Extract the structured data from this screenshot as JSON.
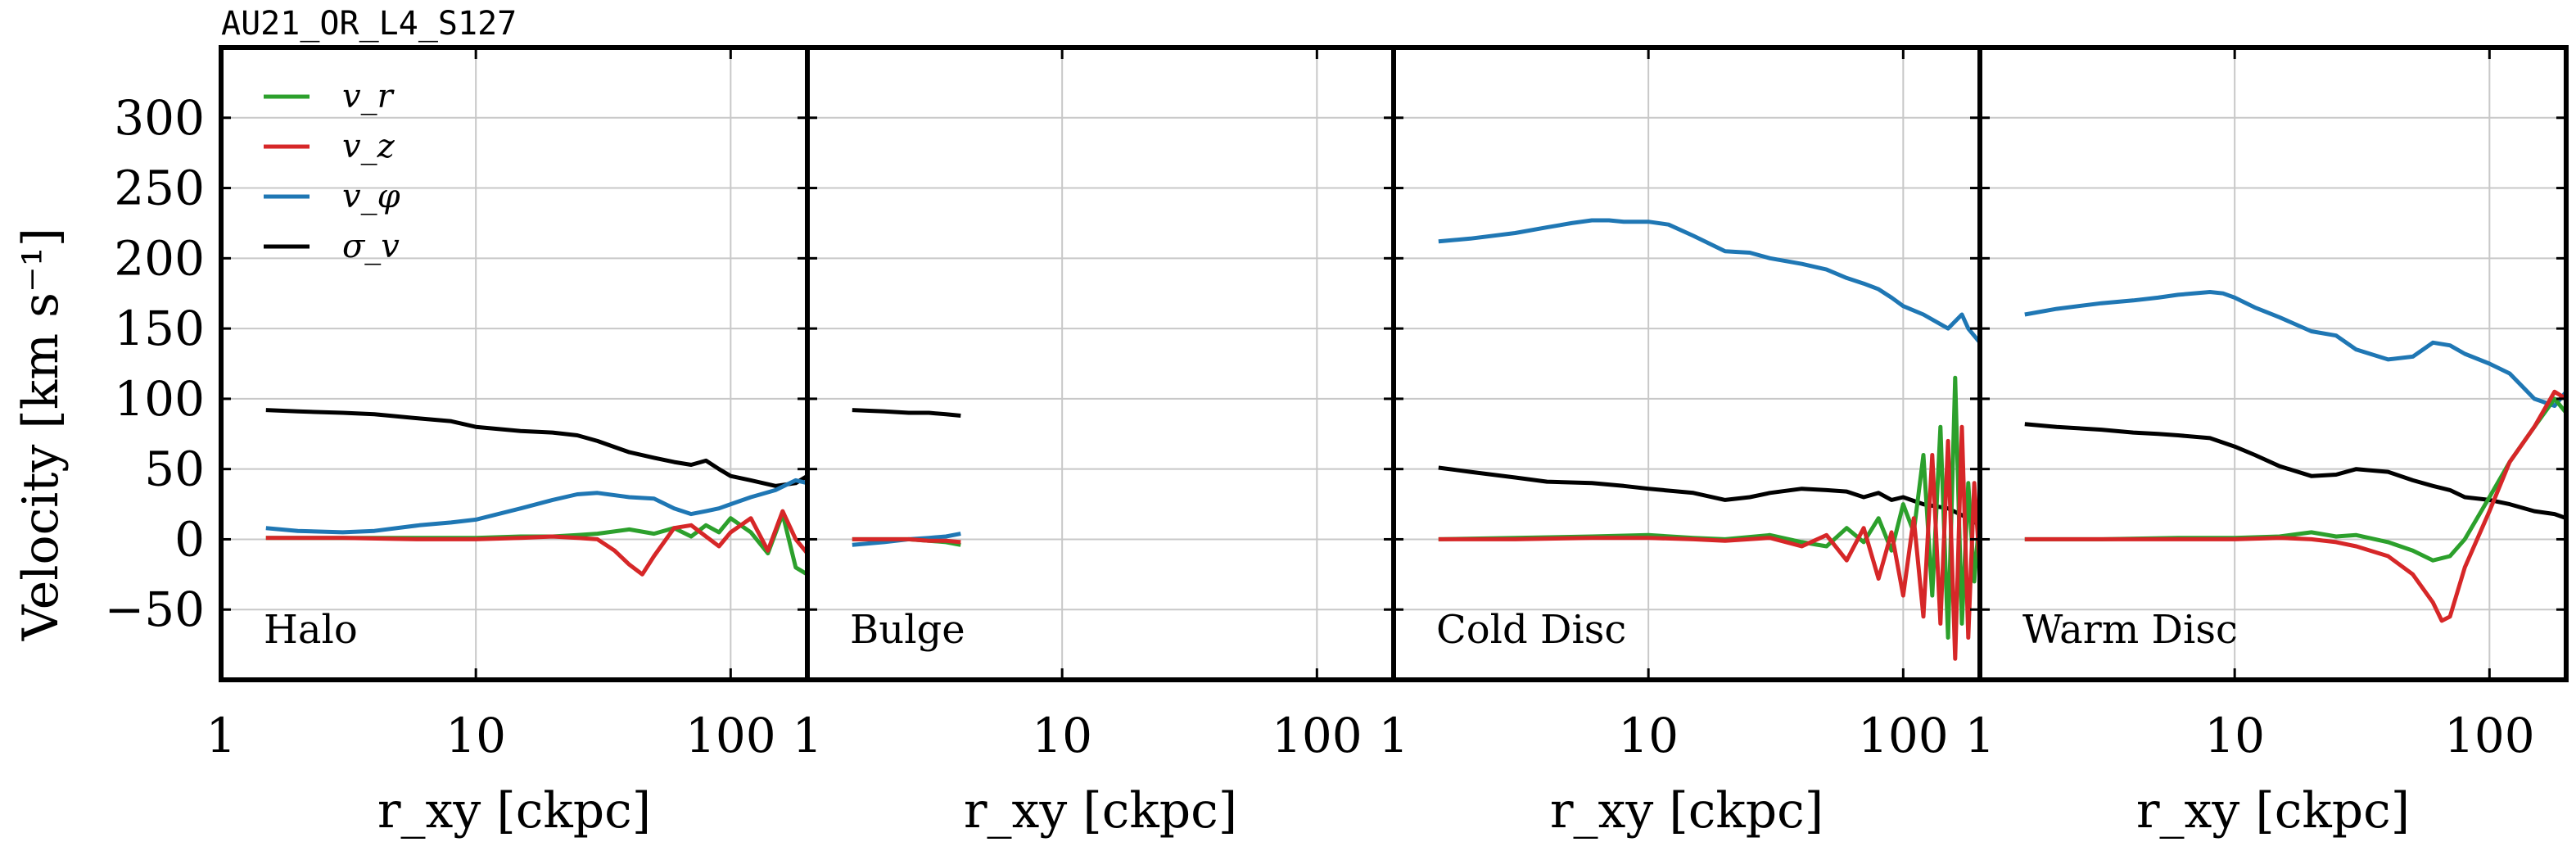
{
  "chart_data": {
    "type": "line",
    "title": "AU21_OR_L4_S127",
    "ylabel": "Velocity [km s⁻¹]",
    "ylim": [
      -100,
      350
    ],
    "yticks": [
      300,
      250,
      200,
      150,
      100,
      50,
      0,
      -50
    ],
    "ytick_labels": [
      "300",
      "250",
      "200",
      "150",
      "100",
      "50",
      "0",
      "−50"
    ],
    "xscale": "log",
    "xlim": [
      1,
      200
    ],
    "xticks": [
      1,
      10,
      100
    ],
    "xtick_labels": [
      "1",
      "10",
      "100"
    ],
    "xlabel": "r_xy [ckpc]",
    "grid": true,
    "legend_position": "top-left",
    "legend": [
      {
        "key": "vr",
        "label": "v_r",
        "color": "#2ca02c"
      },
      {
        "key": "vz",
        "label": "v_z",
        "color": "#d62728"
      },
      {
        "key": "vphi",
        "label": "v_φ",
        "color": "#1f77b4"
      },
      {
        "key": "sigma",
        "label": "σ_v",
        "color": "#000000"
      }
    ],
    "panels": [
      {
        "label": "Halo",
        "series": [
          {
            "key": "sigma",
            "x": [
              1.5,
              2,
              3,
              4,
              6,
              8,
              10,
              15,
              20,
              25,
              30,
              40,
              50,
              60,
              70,
              80,
              90,
              100,
              120,
              150,
              180,
              200
            ],
            "y": [
              92,
              91,
              90,
              89,
              86,
              84,
              80,
              77,
              76,
              74,
              70,
              62,
              58,
              55,
              53,
              56,
              50,
              45,
              42,
              38,
              40,
              45
            ]
          },
          {
            "key": "vphi",
            "x": [
              1.5,
              2,
              3,
              4,
              6,
              8,
              10,
              15,
              20,
              25,
              30,
              40,
              50,
              60,
              70,
              80,
              90,
              100,
              120,
              150,
              180,
              200
            ],
            "y": [
              8,
              6,
              5,
              6,
              10,
              12,
              14,
              22,
              28,
              32,
              33,
              30,
              29,
              22,
              18,
              20,
              22,
              25,
              30,
              35,
              42,
              40
            ]
          },
          {
            "key": "vr",
            "x": [
              1.5,
              3,
              6,
              10,
              15,
              20,
              25,
              30,
              40,
              50,
              60,
              70,
              80,
              90,
              100,
              120,
              140,
              160,
              180,
              200
            ],
            "y": [
              1,
              1,
              1,
              1,
              2,
              2,
              3,
              4,
              7,
              4,
              8,
              2,
              10,
              5,
              15,
              5,
              -10,
              18,
              -20,
              -25
            ]
          },
          {
            "key": "vz",
            "x": [
              1.5,
              3,
              6,
              10,
              15,
              20,
              25,
              30,
              35,
              40,
              45,
              50,
              60,
              70,
              80,
              90,
              100,
              120,
              140,
              160,
              180,
              200
            ],
            "y": [
              1,
              1,
              0,
              0,
              1,
              2,
              1,
              0,
              -8,
              -18,
              -25,
              -12,
              8,
              10,
              2,
              -5,
              5,
              15,
              -8,
              20,
              0,
              -10
            ]
          }
        ]
      },
      {
        "label": "Bulge",
        "series": [
          {
            "key": "sigma",
            "x": [
              1.5,
              2,
              2.5,
              3,
              3.5,
              4
            ],
            "y": [
              92,
              91,
              90,
              90,
              89,
              88
            ]
          },
          {
            "key": "vphi",
            "x": [
              1.5,
              2,
              2.5,
              3,
              3.5,
              4
            ],
            "y": [
              -4,
              -2,
              0,
              1,
              2,
              4
            ]
          },
          {
            "key": "vr",
            "x": [
              1.5,
              2,
              2.5,
              3,
              3.5,
              4
            ],
            "y": [
              0,
              0,
              0,
              -1,
              -2,
              -4
            ]
          },
          {
            "key": "vz",
            "x": [
              1.5,
              2,
              2.5,
              3,
              3.5,
              4
            ],
            "y": [
              0,
              0,
              0,
              -1,
              -1,
              -2
            ]
          }
        ]
      },
      {
        "label": "Cold Disc",
        "series": [
          {
            "key": "sigma",
            "x": [
              1.5,
              2,
              3,
              4,
              6,
              8,
              10,
              15,
              20,
              25,
              30,
              40,
              50,
              60,
              70,
              80,
              90,
              100,
              120,
              150,
              180,
              200
            ],
            "y": [
              51,
              48,
              44,
              41,
              40,
              38,
              36,
              33,
              28,
              30,
              33,
              36,
              35,
              34,
              30,
              33,
              28,
              30,
              25,
              22,
              15,
              10
            ]
          },
          {
            "key": "vphi",
            "x": [
              1.5,
              2,
              3,
              4,
              5,
              6,
              7,
              8,
              9,
              10,
              12,
              15,
              20,
              25,
              30,
              40,
              50,
              60,
              70,
              80,
              90,
              100,
              120,
              150,
              170,
              180,
              200
            ],
            "y": [
              212,
              214,
              218,
              222,
              225,
              227,
              227,
              226,
              226,
              226,
              224,
              216,
              205,
              204,
              200,
              196,
              192,
              186,
              182,
              178,
              172,
              166,
              160,
              150,
              160,
              150,
              140
            ]
          },
          {
            "key": "vr",
            "x": [
              1.5,
              3,
              6,
              10,
              15,
              20,
              30,
              40,
              50,
              60,
              70,
              80,
              90,
              100,
              110,
              120,
              130,
              140,
              150,
              160,
              170,
              180,
              190,
              200
            ],
            "y": [
              0,
              1,
              2,
              3,
              1,
              0,
              3,
              -2,
              -5,
              8,
              -2,
              15,
              -8,
              25,
              5,
              60,
              -40,
              80,
              -70,
              115,
              -60,
              40,
              -30,
              20
            ]
          },
          {
            "key": "vz",
            "x": [
              1.5,
              3,
              6,
              10,
              15,
              20,
              30,
              40,
              50,
              60,
              70,
              80,
              90,
              100,
              110,
              120,
              130,
              140,
              150,
              160,
              170,
              180,
              190,
              200
            ],
            "y": [
              0,
              0,
              1,
              1,
              0,
              -1,
              1,
              -5,
              3,
              -15,
              8,
              -28,
              5,
              -40,
              15,
              -55,
              60,
              -60,
              70,
              -85,
              80,
              -70,
              40,
              -20
            ]
          }
        ]
      },
      {
        "label": "Warm Disc",
        "series": [
          {
            "key": "sigma",
            "x": [
              1.5,
              2,
              3,
              4,
              5,
              6,
              8,
              10,
              12,
              15,
              20,
              25,
              30,
              40,
              50,
              60,
              70,
              80,
              100,
              120,
              150,
              180,
              200
            ],
            "y": [
              82,
              80,
              78,
              76,
              75,
              74,
              72,
              66,
              60,
              52,
              45,
              46,
              50,
              48,
              42,
              38,
              35,
              30,
              28,
              25,
              20,
              18,
              15
            ]
          },
          {
            "key": "vphi",
            "x": [
              1.5,
              2,
              3,
              4,
              5,
              6,
              8,
              9,
              10,
              12,
              15,
              20,
              25,
              30,
              40,
              50,
              60,
              70,
              80,
              100,
              120,
              150,
              180,
              200
            ],
            "y": [
              160,
              164,
              168,
              170,
              172,
              174,
              176,
              175,
              172,
              165,
              158,
              148,
              145,
              135,
              128,
              130,
              140,
              138,
              132,
              125,
              118,
              100,
              95,
              105
            ]
          },
          {
            "key": "vr",
            "x": [
              1.5,
              3,
              6,
              10,
              15,
              20,
              25,
              30,
              40,
              50,
              60,
              70,
              80,
              100,
              120,
              150,
              180,
              200
            ],
            "y": [
              0,
              0,
              1,
              1,
              2,
              5,
              2,
              3,
              -2,
              -8,
              -15,
              -12,
              0,
              30,
              55,
              80,
              100,
              90
            ]
          },
          {
            "key": "vz",
            "x": [
              1.5,
              3,
              6,
              10,
              15,
              20,
              25,
              30,
              40,
              50,
              60,
              65,
              70,
              80,
              100,
              120,
              150,
              180,
              200
            ],
            "y": [
              0,
              0,
              0,
              0,
              1,
              0,
              -2,
              -5,
              -12,
              -25,
              -45,
              -58,
              -55,
              -20,
              20,
              55,
              80,
              105,
              100
            ]
          }
        ]
      }
    ]
  }
}
